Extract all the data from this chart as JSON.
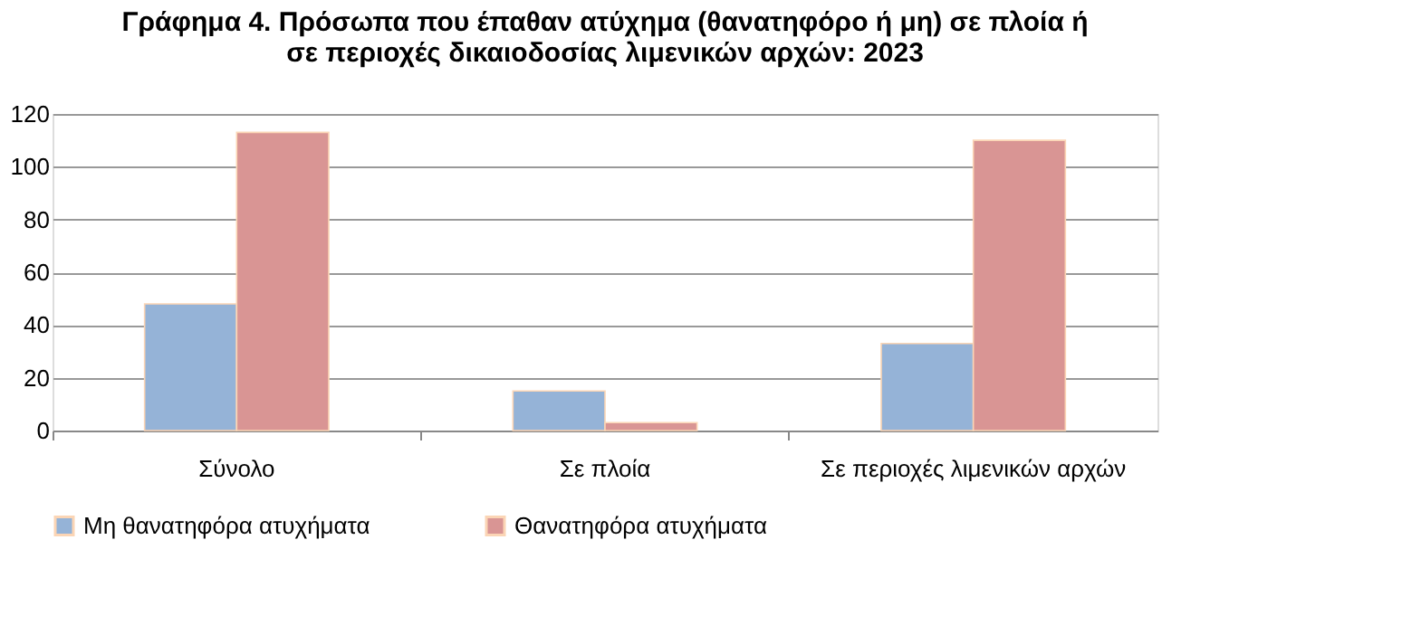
{
  "chart_data": {
    "type": "bar",
    "title": [
      "Γράφημα 4. Πρόσωπα που έπαθαν ατύχημα (θανατηφόρο ή μη) σε πλοία ή",
      "σε περιοχές δικαιοδοσίας λιμενικών αρχών: 2023"
    ],
    "categories": [
      "Σύνολο",
      "Σε πλοία",
      "Σε περιοχές λιμενικών αρχών"
    ],
    "series": [
      {
        "name": "Μη θανατηφόρα ατυχήματα",
        "color": "#95b3d7",
        "values": [
          48,
          15,
          33
        ]
      },
      {
        "name": "Θανατηφόρα ατυχήματα",
        "color": "#d99594",
        "values": [
          113,
          3,
          110
        ]
      }
    ],
    "ylim": [
      0,
      120
    ],
    "yticks": [
      0,
      20,
      40,
      60,
      80,
      100,
      120
    ],
    "grid": "y",
    "legend": "bottom"
  }
}
